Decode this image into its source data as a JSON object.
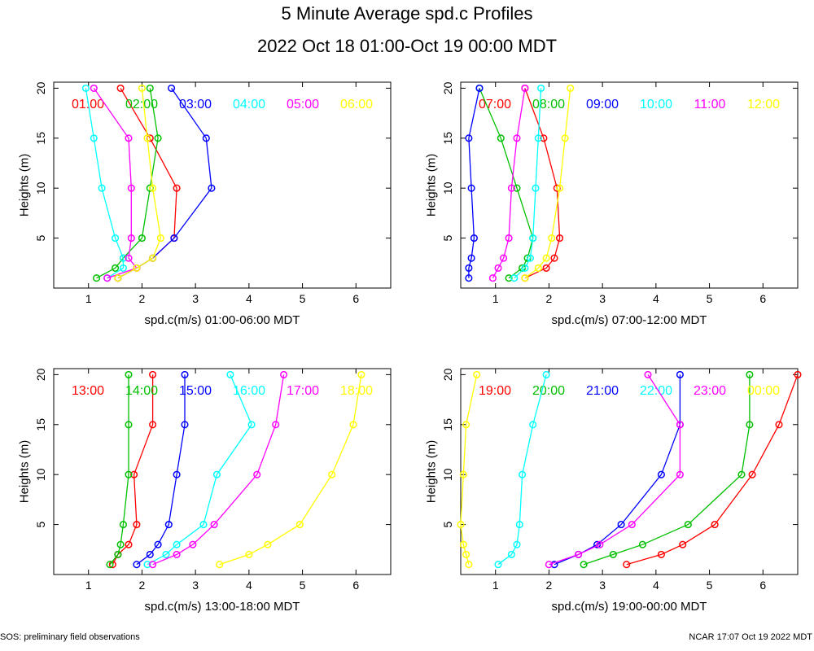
{
  "title": "5 Minute Average spd.c Profiles",
  "subtitle": "2022 Oct 18 01:00-Oct 19 00:00 MDT",
  "footer_left": "SOS: preliminary field observations",
  "footer_right": "NCAR 17:07 Oct 19 2022 MDT",
  "colors": [
    "#ff0000",
    "#00c000",
    "#0000ff",
    "#00ffff",
    "#ff00ff",
    "#ffff00"
  ],
  "chart_data": [
    {
      "type": "line",
      "xlabel": "spd.c(m/s) 01:00-06:00 MDT",
      "ylabel": "Heights (m)",
      "xlim": [
        0.35,
        6.65
      ],
      "ylim": [
        0,
        20.6
      ],
      "xticks": [
        1,
        2,
        3,
        4,
        5,
        6
      ],
      "yticks": [
        5,
        10,
        15,
        20
      ],
      "heights": [
        1,
        2,
        3,
        5,
        10,
        15,
        20
      ],
      "series": [
        {
          "name": "01:00",
          "values": [
            1.55,
            1.9,
            2.2,
            2.6,
            2.65,
            2.15,
            1.6
          ]
        },
        {
          "name": "02:00",
          "values": [
            1.15,
            1.5,
            1.65,
            2.0,
            2.15,
            2.3,
            2.15
          ]
        },
        {
          "name": "03:00",
          "values": [
            1.55,
            1.9,
            2.2,
            2.6,
            3.3,
            3.2,
            2.55
          ]
        },
        {
          "name": "04:00",
          "values": [
            1.35,
            1.65,
            1.65,
            1.5,
            1.25,
            1.1,
            0.95
          ]
        },
        {
          "name": "05:00",
          "values": [
            1.35,
            1.9,
            1.75,
            1.8,
            1.8,
            1.75,
            1.1
          ]
        },
        {
          "name": "06:00",
          "values": [
            1.55,
            1.9,
            2.2,
            2.35,
            2.2,
            2.1,
            2.0
          ]
        }
      ]
    },
    {
      "type": "line",
      "xlabel": "spd.c(m/s) 07:00-12:00 MDT",
      "ylabel": "Heights (m)",
      "xlim": [
        0.35,
        6.65
      ],
      "ylim": [
        0,
        20.6
      ],
      "xticks": [
        1,
        2,
        3,
        4,
        5,
        6
      ],
      "yticks": [
        5,
        10,
        15,
        20
      ],
      "heights": [
        1,
        2,
        3,
        5,
        10,
        15,
        20
      ],
      "series": [
        {
          "name": "07:00",
          "values": [
            1.55,
            1.95,
            2.1,
            2.2,
            2.15,
            1.9,
            1.55
          ]
        },
        {
          "name": "08:00",
          "values": [
            1.25,
            1.5,
            1.6,
            1.7,
            1.4,
            1.1,
            0.7
          ]
        },
        {
          "name": "09:00",
          "values": [
            0.5,
            0.5,
            0.55,
            0.6,
            0.55,
            0.5,
            0.7
          ]
        },
        {
          "name": "10:00",
          "values": [
            1.35,
            1.55,
            1.65,
            1.7,
            1.75,
            1.8,
            1.85
          ]
        },
        {
          "name": "11:00",
          "values": [
            0.95,
            1.05,
            1.15,
            1.25,
            1.3,
            1.4,
            1.55
          ]
        },
        {
          "name": "12:00",
          "values": [
            1.55,
            1.8,
            1.95,
            2.05,
            2.2,
            2.3,
            2.4
          ]
        }
      ]
    },
    {
      "type": "line",
      "xlabel": "spd.c(m/s) 13:00-18:00 MDT",
      "ylabel": "Heights (m)",
      "xlim": [
        0.35,
        6.65
      ],
      "ylim": [
        0,
        20.6
      ],
      "xticks": [
        1,
        2,
        3,
        4,
        5,
        6
      ],
      "yticks": [
        5,
        10,
        15,
        20
      ],
      "heights": [
        1,
        2,
        3,
        5,
        10,
        15,
        20
      ],
      "series": [
        {
          "name": "13:00",
          "values": [
            1.45,
            1.55,
            1.75,
            1.9,
            1.85,
            2.2,
            2.2
          ]
        },
        {
          "name": "14:00",
          "values": [
            1.4,
            1.55,
            1.6,
            1.65,
            1.75,
            1.75,
            1.75
          ]
        },
        {
          "name": "15:00",
          "values": [
            1.9,
            2.15,
            2.3,
            2.5,
            2.65,
            2.8,
            2.8
          ]
        },
        {
          "name": "16:00",
          "values": [
            2.1,
            2.45,
            2.65,
            3.15,
            3.4,
            4.05,
            3.65
          ]
        },
        {
          "name": "17:00",
          "values": [
            2.2,
            2.65,
            2.95,
            3.35,
            4.15,
            4.5,
            4.65
          ]
        },
        {
          "name": "18:00",
          "values": [
            3.45,
            4.0,
            4.35,
            4.95,
            5.55,
            5.95,
            6.1
          ]
        }
      ]
    },
    {
      "type": "line",
      "xlabel": "spd.c(m/s) 19:00-00:00 MDT",
      "ylabel": "Heights (m)",
      "xlim": [
        0.35,
        6.65
      ],
      "ylim": [
        0,
        20.6
      ],
      "xticks": [
        1,
        2,
        3,
        4,
        5,
        6
      ],
      "yticks": [
        5,
        10,
        15,
        20
      ],
      "heights": [
        1,
        2,
        3,
        5,
        10,
        15,
        20
      ],
      "series": [
        {
          "name": "19:00",
          "values": [
            3.45,
            4.1,
            4.5,
            5.1,
            5.8,
            6.3,
            6.65
          ]
        },
        {
          "name": "20:00",
          "values": [
            2.65,
            3.2,
            3.75,
            4.6,
            5.6,
            5.75,
            5.75
          ]
        },
        {
          "name": "21:00",
          "values": [
            2.1,
            2.55,
            2.9,
            3.35,
            4.1,
            4.45,
            4.45
          ]
        },
        {
          "name": "22:00",
          "values": [
            1.05,
            1.3,
            1.4,
            1.45,
            1.5,
            1.7,
            1.95
          ]
        },
        {
          "name": "23:00",
          "values": [
            2.0,
            2.55,
            2.95,
            3.55,
            4.45,
            4.45,
            3.85
          ]
        },
        {
          "name": "00:00",
          "values": [
            0.5,
            0.45,
            0.4,
            0.35,
            0.4,
            0.45,
            0.65
          ]
        }
      ]
    }
  ]
}
